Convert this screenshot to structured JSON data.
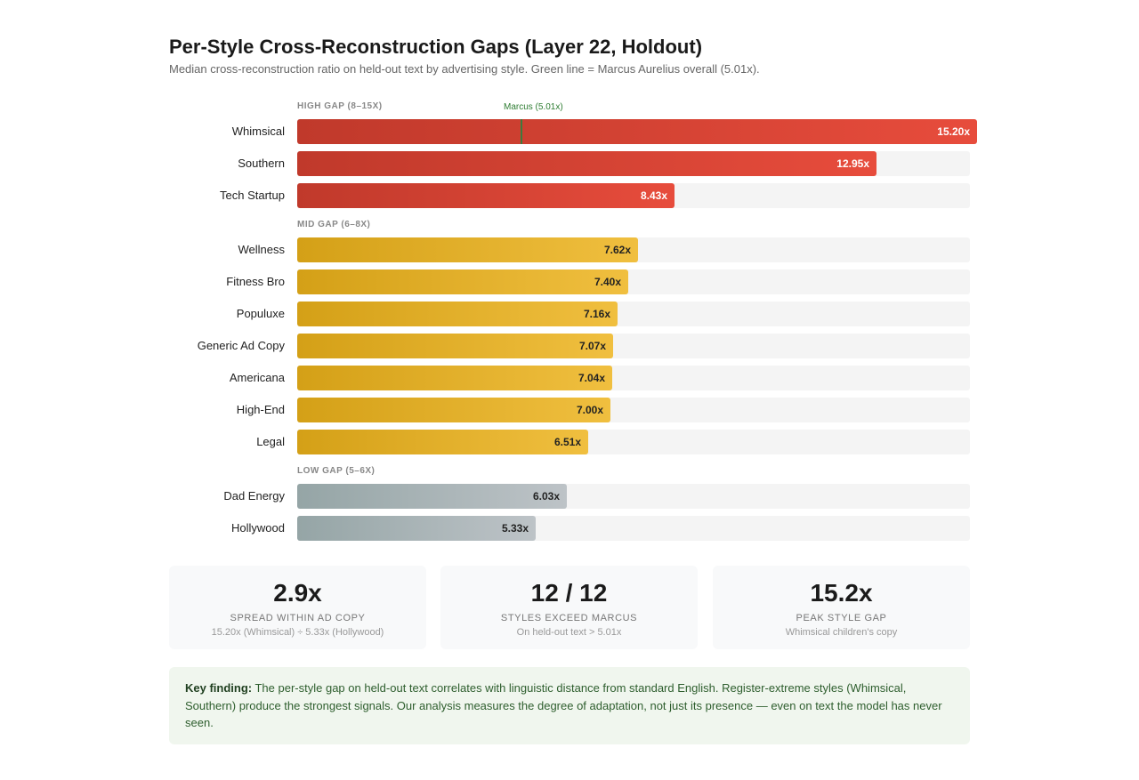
{
  "header": {
    "title": "Per-Style Cross-Reconstruction Gaps (Layer 22, Holdout)",
    "subtitle": "Median cross-reconstruction ratio on held-out text by advertising style. Green line = Marcus Aurelius overall (5.01x)."
  },
  "chart_data": {
    "type": "bar",
    "orientation": "horizontal",
    "title": "Per-Style Cross-Reconstruction Gaps (Layer 22, Holdout)",
    "xlim": [
      0,
      15.2
    ],
    "reference_line": {
      "label": "Marcus (5.01x)",
      "value": 5.01,
      "color": "#2e7d32"
    },
    "groups": [
      {
        "name": "HIGH GAP (8–15X)",
        "tier": "high",
        "items": [
          {
            "category": "Whimsical",
            "value": 15.2,
            "label": "15.20x"
          },
          {
            "category": "Southern",
            "value": 12.95,
            "label": "12.95x"
          },
          {
            "category": "Tech Startup",
            "value": 8.43,
            "label": "8.43x"
          }
        ]
      },
      {
        "name": "MID GAP (6–8X)",
        "tier": "mid",
        "items": [
          {
            "category": "Wellness",
            "value": 7.62,
            "label": "7.62x"
          },
          {
            "category": "Fitness Bro",
            "value": 7.4,
            "label": "7.40x"
          },
          {
            "category": "Populuxe",
            "value": 7.16,
            "label": "7.16x"
          },
          {
            "category": "Generic Ad Copy",
            "value": 7.07,
            "label": "7.07x"
          },
          {
            "category": "Americana",
            "value": 7.04,
            "label": "7.04x"
          },
          {
            "category": "High-End",
            "value": 7.0,
            "label": "7.00x"
          },
          {
            "category": "Legal",
            "value": 6.51,
            "label": "6.51x"
          }
        ]
      },
      {
        "name": "LOW GAP (5–6X)",
        "tier": "low",
        "items": [
          {
            "category": "Dad Energy",
            "value": 6.03,
            "label": "6.03x"
          },
          {
            "category": "Hollywood",
            "value": 5.33,
            "label": "5.33x"
          }
        ]
      }
    ],
    "colors": {
      "high": "#e74c3c",
      "mid": "#f0bf3f",
      "low": "#bdc3c7"
    }
  },
  "stats": [
    {
      "value": "2.9x",
      "label": "SPREAD WITHIN AD COPY",
      "sub": "15.20x (Whimsical) ÷ 5.33x (Hollywood)"
    },
    {
      "value": "12 / 12",
      "label": "STYLES EXCEED MARCUS",
      "sub": "On held-out text > 5.01x"
    },
    {
      "value": "15.2x",
      "label": "PEAK STYLE GAP",
      "sub": "Whimsical children's copy"
    }
  ],
  "finding": {
    "label": "Key finding:",
    "text": " The per-style gap on held-out text correlates with linguistic distance from standard English. Register-extreme styles (Whimsical, Southern) produce the strongest signals. Our analysis measures the degree of adaptation, not just its presence — even on text the model has never seen."
  }
}
